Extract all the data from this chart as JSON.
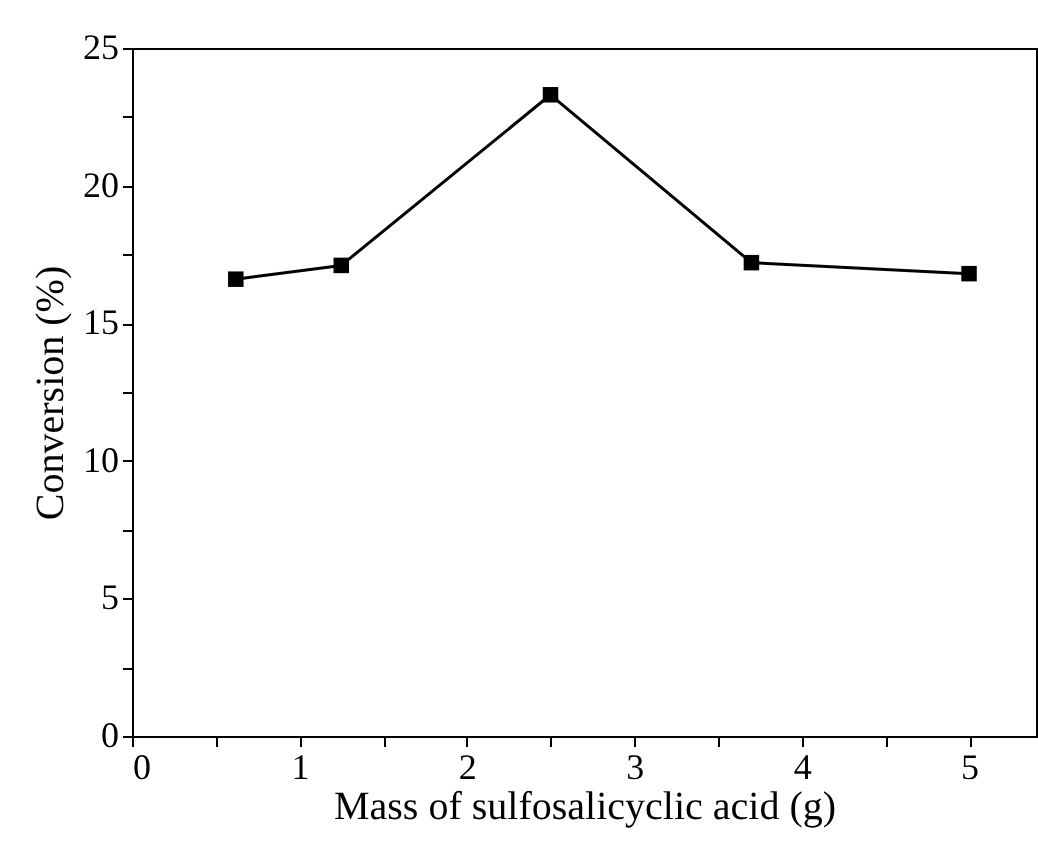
{
  "chart_data": {
    "type": "line",
    "xlabel": "Mass of sulfosalicyclic acid (g)",
    "ylabel": "Conversion (%)",
    "x": [
      0.62,
      1.25,
      2.5,
      3.7,
      5.0
    ],
    "series": [
      {
        "color": "#000000",
        "values": [
          16.6,
          17.1,
          23.3,
          17.2,
          16.8
        ]
      }
    ],
    "xlim": [
      0,
      5.4
    ],
    "ylim": [
      0,
      25
    ],
    "xticks": [
      0,
      {
        "value": 0.5,
        "label": null
      },
      1,
      {
        "value": 1.5,
        "label": null
      },
      2,
      {
        "value": 2.5,
        "label": null
      },
      3,
      {
        "value": 3.5,
        "label": null
      },
      4,
      {
        "value": 4.5,
        "label": null
      },
      5
    ],
    "yticks": [
      0,
      {
        "value": 2.5,
        "label": null
      },
      5,
      {
        "value": 7.5,
        "label": null
      },
      10,
      {
        "value": 12.5,
        "label": null
      },
      15,
      {
        "value": 17.5,
        "label": null
      },
      20,
      {
        "value": 22.5,
        "label": null
      },
      25
    ],
    "marker": "square",
    "line_style": "solid"
  }
}
